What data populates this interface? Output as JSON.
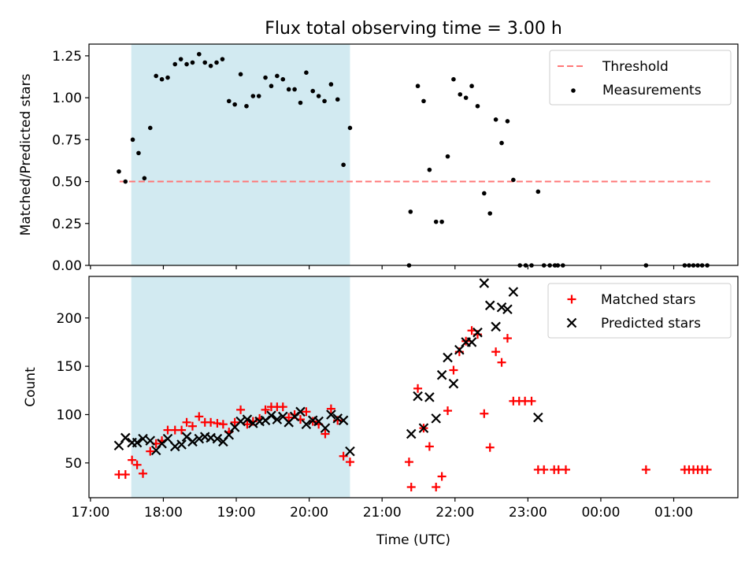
{
  "chart_data": [
    {
      "type": "scatter",
      "title": "Flux total observing time = 3.00 h",
      "xlabel": "",
      "ylabel": "Matched/Predicted stars",
      "xlim": [
        16.98,
        25.88
      ],
      "ylim": [
        0,
        1.32
      ],
      "yticks": [
        0.0,
        0.25,
        0.5,
        0.75,
        1.0,
        1.25
      ],
      "yticklabels": [
        "0.00",
        "0.25",
        "0.50",
        "0.75",
        "1.00",
        "1.25"
      ],
      "shaded_region": [
        17.56,
        20.56
      ],
      "legend_position": "upper-right",
      "threshold": {
        "name": "Threshold",
        "value": 0.5,
        "x_range": [
          17.4,
          25.5
        ],
        "color": "#ff7777"
      },
      "series": [
        {
          "name": "Measurements",
          "marker": "dot",
          "color": "#000000",
          "points": [
            [
              17.39,
              0.56
            ],
            [
              17.48,
              0.5
            ],
            [
              17.58,
              0.75
            ],
            [
              17.66,
              0.67
            ],
            [
              17.74,
              0.52
            ],
            [
              17.82,
              0.82
            ],
            [
              17.9,
              1.13
            ],
            [
              17.98,
              1.11
            ],
            [
              18.06,
              1.12
            ],
            [
              18.16,
              1.2
            ],
            [
              18.24,
              1.23
            ],
            [
              18.32,
              1.2
            ],
            [
              18.4,
              1.21
            ],
            [
              18.49,
              1.26
            ],
            [
              18.57,
              1.21
            ],
            [
              18.65,
              1.19
            ],
            [
              18.73,
              1.21
            ],
            [
              18.81,
              1.23
            ],
            [
              18.9,
              0.98
            ],
            [
              18.98,
              0.96
            ],
            [
              19.06,
              1.14
            ],
            [
              19.14,
              0.95
            ],
            [
              19.23,
              1.01
            ],
            [
              19.31,
              1.01
            ],
            [
              19.4,
              1.12
            ],
            [
              19.48,
              1.07
            ],
            [
              19.56,
              1.13
            ],
            [
              19.64,
              1.11
            ],
            [
              19.72,
              1.05
            ],
            [
              19.8,
              1.05
            ],
            [
              19.88,
              0.97
            ],
            [
              19.96,
              1.15
            ],
            [
              20.05,
              1.04
            ],
            [
              20.13,
              1.01
            ],
            [
              20.21,
              0.98
            ],
            [
              20.3,
              1.08
            ],
            [
              20.39,
              0.99
            ],
            [
              20.47,
              0.6
            ],
            [
              20.56,
              0.82
            ],
            [
              21.37,
              0.0
            ],
            [
              21.39,
              0.32
            ],
            [
              21.49,
              1.07
            ],
            [
              21.57,
              0.98
            ],
            [
              21.65,
              0.57
            ],
            [
              21.74,
              0.26
            ],
            [
              21.82,
              0.26
            ],
            [
              21.9,
              0.65
            ],
            [
              21.98,
              1.11
            ],
            [
              22.07,
              1.02
            ],
            [
              22.15,
              1.0
            ],
            [
              22.23,
              1.07
            ],
            [
              22.31,
              0.95
            ],
            [
              22.4,
              0.43
            ],
            [
              22.48,
              0.31
            ],
            [
              22.56,
              0.87
            ],
            [
              22.64,
              0.73
            ],
            [
              22.72,
              0.86
            ],
            [
              22.8,
              0.51
            ],
            [
              22.89,
              0.0
            ],
            [
              22.97,
              0.0
            ],
            [
              23.05,
              0.0
            ],
            [
              23.14,
              0.44
            ],
            [
              23.22,
              0.0
            ],
            [
              23.3,
              0.0
            ],
            [
              23.37,
              0.0
            ],
            [
              23.41,
              0.0
            ],
            [
              23.48,
              0.0
            ],
            [
              24.62,
              0.0
            ],
            [
              25.15,
              0.0
            ],
            [
              25.21,
              0.0
            ],
            [
              25.27,
              0.0
            ],
            [
              25.33,
              0.0
            ],
            [
              25.39,
              0.0
            ],
            [
              25.46,
              0.0
            ]
          ]
        }
      ]
    },
    {
      "type": "scatter",
      "title": "",
      "xlabel": "Time (UTC)",
      "ylabel": "Count",
      "xlim": [
        16.98,
        25.88
      ],
      "ylim": [
        14,
        243
      ],
      "yticks": [
        50,
        100,
        150,
        200
      ],
      "yticklabels": [
        "50",
        "100",
        "150",
        "200"
      ],
      "xticks": [
        17,
        18,
        19,
        20,
        21,
        22,
        23,
        24,
        25
      ],
      "xticklabels": [
        "17:00",
        "18:00",
        "19:00",
        "20:00",
        "21:00",
        "22:00",
        "23:00",
        "00:00",
        "01:00"
      ],
      "shaded_region": [
        17.56,
        20.56
      ],
      "legend_position": "upper-right",
      "series": [
        {
          "name": "Matched stars",
          "marker": "plus",
          "color": "#ff0000",
          "points": [
            [
              17.39,
              38
            ],
            [
              17.48,
              38
            ],
            [
              17.57,
              53
            ],
            [
              17.64,
              48
            ],
            [
              17.72,
              39
            ],
            [
              17.82,
              62
            ],
            [
              17.9,
              70
            ],
            [
              17.98,
              73
            ],
            [
              18.06,
              84
            ],
            [
              18.16,
              84
            ],
            [
              18.25,
              84
            ],
            [
              18.32,
              92
            ],
            [
              18.4,
              88
            ],
            [
              18.49,
              98
            ],
            [
              18.57,
              92
            ],
            [
              18.65,
              92
            ],
            [
              18.74,
              91
            ],
            [
              18.82,
              90
            ],
            [
              18.9,
              82
            ],
            [
              18.98,
              92
            ],
            [
              19.06,
              105
            ],
            [
              19.15,
              90
            ],
            [
              19.23,
              93
            ],
            [
              19.32,
              96
            ],
            [
              19.4,
              105
            ],
            [
              19.48,
              108
            ],
            [
              19.56,
              108
            ],
            [
              19.64,
              108
            ],
            [
              19.72,
              97
            ],
            [
              19.8,
              100
            ],
            [
              19.88,
              95
            ],
            [
              19.96,
              103
            ],
            [
              20.05,
              93
            ],
            [
              20.13,
              90
            ],
            [
              20.22,
              80
            ],
            [
              20.3,
              106
            ],
            [
              20.39,
              94
            ],
            [
              20.47,
              57
            ],
            [
              20.56,
              51
            ],
            [
              21.37,
              51
            ],
            [
              21.4,
              25
            ],
            [
              21.49,
              127
            ],
            [
              21.57,
              86
            ],
            [
              21.65,
              67
            ],
            [
              21.74,
              25
            ],
            [
              21.82,
              36
            ],
            [
              21.9,
              104
            ],
            [
              21.98,
              146
            ],
            [
              22.06,
              165
            ],
            [
              22.15,
              176
            ],
            [
              22.23,
              187
            ],
            [
              22.31,
              183
            ],
            [
              22.4,
              101
            ],
            [
              22.48,
              66
            ],
            [
              22.56,
              165
            ],
            [
              22.64,
              154
            ],
            [
              22.72,
              179
            ],
            [
              22.8,
              114
            ],
            [
              22.88,
              114
            ],
            [
              22.96,
              114
            ],
            [
              23.05,
              114
            ],
            [
              23.14,
              43
            ],
            [
              23.22,
              43
            ],
            [
              23.36,
              43
            ],
            [
              23.42,
              43
            ],
            [
              23.52,
              43
            ],
            [
              24.62,
              43
            ],
            [
              25.15,
              43
            ],
            [
              25.21,
              43
            ],
            [
              25.27,
              43
            ],
            [
              25.33,
              43
            ],
            [
              25.39,
              43
            ],
            [
              25.46,
              43
            ]
          ]
        },
        {
          "name": "Predicted stars",
          "marker": "x",
          "color": "#000000",
          "points": [
            [
              17.39,
              68
            ],
            [
              17.48,
              76
            ],
            [
              17.57,
              71
            ],
            [
              17.64,
              71
            ],
            [
              17.72,
              75
            ],
            [
              17.82,
              73
            ],
            [
              17.9,
              63
            ],
            [
              17.98,
              70
            ],
            [
              18.06,
              75
            ],
            [
              18.16,
              67
            ],
            [
              18.25,
              69
            ],
            [
              18.32,
              77
            ],
            [
              18.4,
              72
            ],
            [
              18.49,
              75
            ],
            [
              18.57,
              77
            ],
            [
              18.65,
              76
            ],
            [
              18.74,
              75
            ],
            [
              18.82,
              72
            ],
            [
              18.9,
              79
            ],
            [
              18.98,
              87
            ],
            [
              19.06,
              93
            ],
            [
              19.15,
              95
            ],
            [
              19.23,
              91
            ],
            [
              19.32,
              93
            ],
            [
              19.4,
              94
            ],
            [
              19.48,
              99
            ],
            [
              19.56,
              95
            ],
            [
              19.64,
              98
            ],
            [
              19.72,
              92
            ],
            [
              19.8,
              98
            ],
            [
              19.88,
              103
            ],
            [
              19.96,
              90
            ],
            [
              20.05,
              94
            ],
            [
              20.13,
              93
            ],
            [
              20.22,
              86
            ],
            [
              20.3,
              100
            ],
            [
              20.39,
              96
            ],
            [
              20.47,
              94
            ],
            [
              20.56,
              62
            ],
            [
              21.4,
              80
            ],
            [
              21.49,
              119
            ],
            [
              21.57,
              86
            ],
            [
              21.65,
              118
            ],
            [
              21.74,
              96
            ],
            [
              21.82,
              141
            ],
            [
              21.9,
              159
            ],
            [
              21.98,
              132
            ],
            [
              22.06,
              167
            ],
            [
              22.15,
              175
            ],
            [
              22.23,
              175
            ],
            [
              22.31,
              185
            ],
            [
              22.4,
              236
            ],
            [
              22.48,
              213
            ],
            [
              22.56,
              191
            ],
            [
              22.64,
              211
            ],
            [
              22.72,
              209
            ],
            [
              22.8,
              227
            ],
            [
              23.14,
              97
            ]
          ]
        }
      ]
    }
  ]
}
